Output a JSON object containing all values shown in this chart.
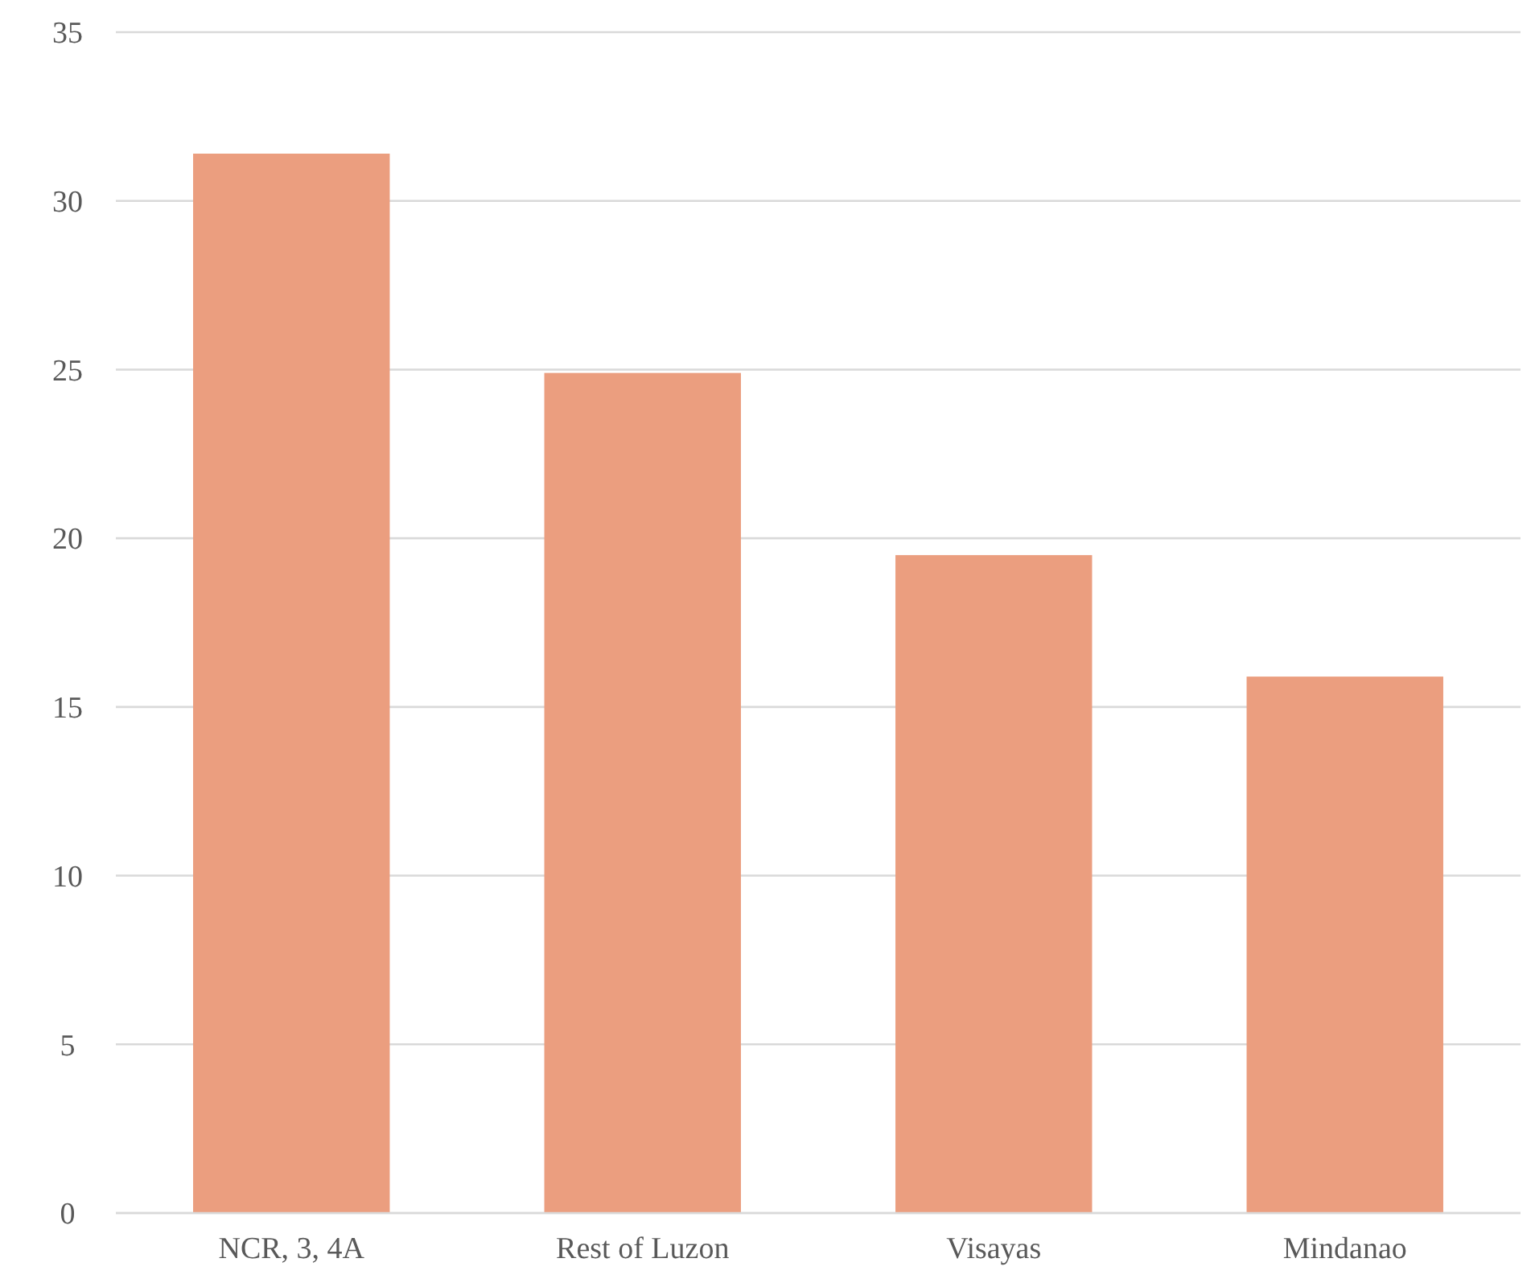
{
  "chart_data": {
    "type": "bar",
    "categories": [
      "NCR, 3, 4A",
      "Rest of Luzon",
      "Visayas",
      "Mindanao"
    ],
    "values": [
      31.4,
      24.9,
      19.5,
      15.9
    ],
    "color": "#eb9e7f",
    "ylim": [
      0,
      35
    ],
    "yticks": [
      0,
      5,
      10,
      15,
      20,
      25,
      30,
      35
    ],
    "grid": "y"
  }
}
